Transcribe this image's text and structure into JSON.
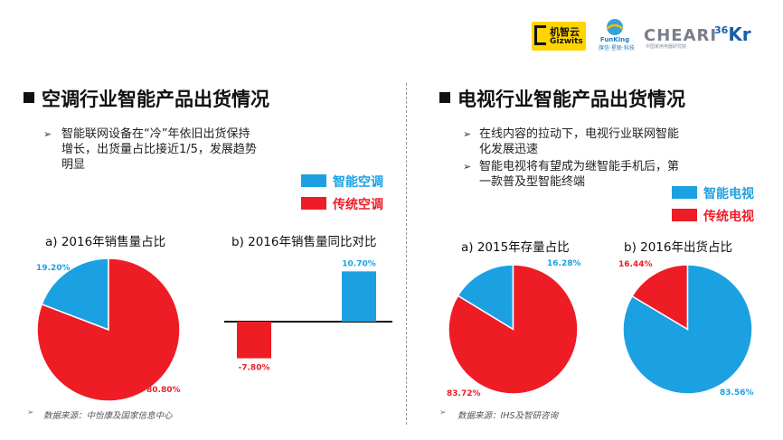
{
  "logos": {
    "gizwits_cn": "机智云",
    "gizwits_en": "Gizwits",
    "mid_en": "FunKing",
    "mid_cn": "旗信·星联·科技",
    "cheari": "CHEARI",
    "cheari_sub": "中国家用电器研究院",
    "kr_num": "36",
    "kr_text": "Kr"
  },
  "colors": {
    "blue": "#1ba1e2",
    "red": "#ee1c25",
    "dark": "#111111"
  },
  "left": {
    "title": "空调行业智能产品出货情况",
    "bullet_lines": [
      "智能联网设备在“冷”年依旧出货保持",
      "增长，出货量占比接近1/5，发展趋势",
      "明显"
    ],
    "legend": [
      "智能空调",
      "传统空调"
    ],
    "source": "数据来源：中怡康及国家信息中心"
  },
  "right": {
    "title": "电视行业智能产品出货情况",
    "bullets": [
      [
        "在线内容的拉动下，电视行业联网智能",
        "化发展迅速"
      ],
      [
        "智能电视将有望成为继智能手机后，第",
        "一款普及型智能终端"
      ]
    ],
    "legend": [
      "智能电视",
      "传统电视"
    ],
    "source": "数据来源：IHS及智研咨询"
  },
  "chart_data": [
    {
      "type": "pie",
      "title": "a) 2016年销售量占比",
      "categories": [
        "智能空调",
        "传统空调"
      ],
      "values": [
        19.2,
        80.8
      ],
      "labels": [
        "19.20%",
        "80.80%"
      ]
    },
    {
      "type": "bar",
      "title": "b) 2016年销售量同比对比",
      "categories": [
        "传统空调",
        "智能空调"
      ],
      "values": [
        -7.8,
        10.7
      ],
      "labels": [
        "-7.80%",
        "10.70%"
      ]
    },
    {
      "type": "pie",
      "title": "a) 2015年存量占比",
      "categories": [
        "智能电视",
        "传统电视"
      ],
      "values": [
        16.28,
        83.72
      ],
      "labels": [
        "16.28%",
        "83.72%"
      ]
    },
    {
      "type": "pie",
      "title": "b) 2016年出货占比",
      "categories": [
        "传统电视",
        "智能电视"
      ],
      "values": [
        16.44,
        83.56
      ],
      "labels": [
        "16.44%",
        "83.56%"
      ]
    }
  ]
}
